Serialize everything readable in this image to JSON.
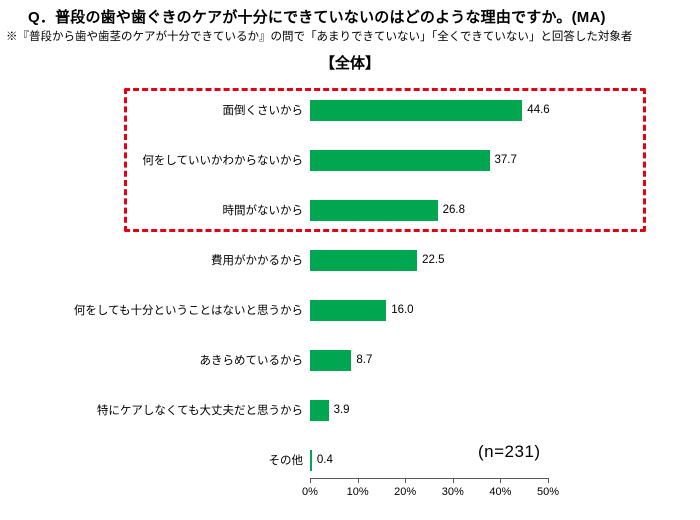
{
  "header": {
    "title": "Q．普段の歯や歯ぐきのケアが十分にできていないのはどのような理由ですか。(MA)",
    "subtitle": "※『普段から歯や歯茎のケアが十分できているか』の問で「あまりできていない」「全くできていない」と回答した対象者",
    "section": "【全体】"
  },
  "chart_data": {
    "type": "bar",
    "orientation": "horizontal",
    "title": "普段の歯や歯ぐきのケアが十分にできていない理由（全体）",
    "categories": [
      "面倒くさいから",
      "何をしていいかわからないから",
      "時間がないから",
      "費用がかかるから",
      "何をしても十分ということはないと思うから",
      "あきらめているから",
      "特にケアしなくても大丈夫だと思うから",
      "その他"
    ],
    "values": [
      44.6,
      37.7,
      26.8,
      22.5,
      16.0,
      8.7,
      3.9,
      0.4
    ],
    "value_labels": [
      "44.6",
      "37.7",
      "26.8",
      "22.5",
      "16.0",
      "8.7",
      "3.9",
      "0.4"
    ],
    "xlabel": "",
    "ylabel": "",
    "xlim": [
      0,
      50
    ],
    "x_ticks": [
      "0%",
      "10%",
      "20%",
      "30%",
      "40%",
      "50%"
    ],
    "grid": false,
    "legend": false,
    "bar_color": "#00A650",
    "highlight_box_rows": [
      0,
      1,
      2
    ],
    "highlight_color": "#E60012",
    "n_label": "(n=231)"
  }
}
